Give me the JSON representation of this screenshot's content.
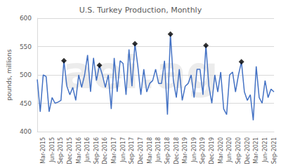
{
  "chart_data": {
    "type": "line",
    "title": "U.S. Turkey Production, Monthly",
    "y_label": "pounds, millions",
    "annotations": [
      "aei.ag"
    ],
    "categories": [
      null,
      null,
      "Mar-2015",
      null,
      null,
      "Jun-2015",
      null,
      null,
      "Sep-2015",
      null,
      null,
      "Dec-2015",
      null,
      null,
      "Mar-2016",
      null,
      null,
      "Jun-2016",
      null,
      null,
      "Sep-2016",
      null,
      null,
      "Dec-2016",
      null,
      null,
      "Mar-2017",
      null,
      null,
      "Jun-2017",
      null,
      null,
      "Sep-2017",
      null,
      null,
      "Dec-2017",
      null,
      null,
      "Mar-2018",
      null,
      null,
      "Jun-2018",
      null,
      null,
      "Sep-2018",
      null,
      null,
      "Dec-2018",
      null,
      null,
      "Mar-2019",
      null,
      null,
      "Jun-2019",
      null,
      null,
      "Sep-2019",
      null,
      null,
      "Dec-2019",
      null,
      null,
      "Mar-2020",
      null,
      null,
      "Jun-2020",
      null,
      null,
      "Sep-2020",
      null,
      null,
      "Dec-2020",
      null,
      null,
      "Mar-2021",
      null,
      null,
      "Jun-2021",
      null,
      null,
      "Sep-2021"
    ],
    "series": [
      {
        "type": "line",
        "color": "#4472c4",
        "line_style": "solid",
        "marker": "none",
        "values": [
          492,
          435,
          500,
          497,
          435,
          460,
          450,
          452,
          455,
          525,
          480,
          465,
          478,
          455,
          500,
          478,
          500,
          535,
          470,
          530,
          490,
          517,
          500,
          478,
          500,
          440,
          530,
          470,
          525,
          520,
          465,
          545,
          480,
          555,
          515,
          465,
          510,
          470,
          485,
          490,
          510,
          485,
          485,
          525,
          430,
          572,
          490,
          460,
          510,
          455,
          480,
          485,
          500,
          460,
          510,
          510,
          465,
          552,
          480,
          450,
          500,
          470,
          505,
          440,
          430,
          500,
          505,
          470,
          500,
          523,
          470,
          455,
          465,
          420,
          515,
          460,
          450,
          490,
          460,
          475,
          470
        ]
      },
      {
        "type": "scatter",
        "color": "#000000",
        "marker": "diamond",
        "values": [
          null,
          null,
          null,
          null,
          null,
          null,
          null,
          null,
          null,
          525,
          null,
          null,
          null,
          null,
          null,
          null,
          null,
          null,
          null,
          null,
          null,
          517,
          null,
          null,
          null,
          null,
          null,
          null,
          null,
          null,
          null,
          null,
          null,
          555,
          null,
          null,
          null,
          null,
          null,
          null,
          null,
          null,
          null,
          null,
          null,
          572,
          null,
          null,
          null,
          null,
          null,
          null,
          null,
          null,
          null,
          null,
          null,
          552,
          null,
          null,
          null,
          null,
          null,
          null,
          null,
          null,
          null,
          null,
          null,
          523,
          null,
          null,
          null,
          null,
          null,
          null,
          null,
          null,
          null,
          null,
          null
        ]
      }
    ],
    "ylim": [
      400,
      600
    ],
    "yticks": [
      400,
      450,
      500,
      550,
      600
    ],
    "grid": true
  }
}
